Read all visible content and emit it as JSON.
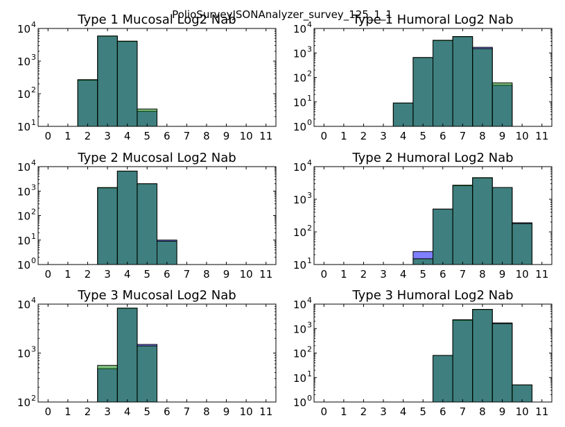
{
  "figure": {
    "suptitle": "PolioSurveyJSONAnalyzer_survey_125_1_1"
  },
  "chart_data": [
    {
      "type": "bar",
      "title": "Type 1 Mucosal Log2 Nab",
      "x_ticks": [
        "0",
        "1",
        "2",
        "3",
        "4",
        "5",
        "6",
        "7",
        "8",
        "9",
        "10",
        "11"
      ],
      "xlim": [
        -0.5,
        11.5
      ],
      "yscale": "log",
      "ylim": [
        10,
        10000
      ],
      "y_ticks": [
        {
          "base": "10",
          "exp": "1"
        },
        {
          "base": "10",
          "exp": "2"
        },
        {
          "base": "10",
          "exp": "3"
        },
        {
          "base": "10",
          "exp": "4"
        }
      ],
      "grid": false,
      "series": [
        {
          "color": "#0000ff",
          "values": [
            0,
            0,
            260,
            5800,
            4000,
            29,
            0,
            0,
            0,
            0,
            0,
            0
          ]
        },
        {
          "color": "#008000",
          "values": [
            0,
            0,
            270,
            5900,
            4100,
            34,
            0,
            0,
            0,
            0,
            0,
            0
          ]
        }
      ]
    },
    {
      "type": "bar",
      "title": "Type 1 Humoral Log2 Nab",
      "x_ticks": [
        "0",
        "1",
        "2",
        "3",
        "4",
        "5",
        "6",
        "7",
        "8",
        "9",
        "10",
        "11"
      ],
      "xlim": [
        -0.5,
        11.5
      ],
      "yscale": "log",
      "ylim": [
        1,
        10000
      ],
      "y_ticks": [
        {
          "base": "10",
          "exp": "0"
        },
        {
          "base": "10",
          "exp": "1"
        },
        {
          "base": "10",
          "exp": "2"
        },
        {
          "base": "10",
          "exp": "3"
        },
        {
          "base": "10",
          "exp": "4"
        }
      ],
      "grid": false,
      "series": [
        {
          "color": "#0000ff",
          "values": [
            0,
            0,
            0,
            0,
            9,
            650,
            3200,
            4600,
            1700,
            48,
            0,
            0
          ]
        },
        {
          "color": "#008000",
          "values": [
            0,
            0,
            0,
            0,
            9,
            650,
            3300,
            4700,
            1500,
            60,
            0,
            0
          ]
        }
      ]
    },
    {
      "type": "bar",
      "title": "Type 2 Mucosal Log2 Nab",
      "x_ticks": [
        "0",
        "1",
        "2",
        "3",
        "4",
        "5",
        "6",
        "7",
        "8",
        "9",
        "10",
        "11"
      ],
      "xlim": [
        -0.5,
        11.5
      ],
      "yscale": "log",
      "ylim": [
        1,
        10000
      ],
      "y_ticks": [
        {
          "base": "10",
          "exp": "0"
        },
        {
          "base": "10",
          "exp": "1"
        },
        {
          "base": "10",
          "exp": "2"
        },
        {
          "base": "10",
          "exp": "3"
        },
        {
          "base": "10",
          "exp": "4"
        }
      ],
      "grid": false,
      "series": [
        {
          "color": "#0000ff",
          "values": [
            0,
            0,
            0,
            1350,
            6500,
            2000,
            10,
            0,
            0,
            0,
            0,
            0
          ]
        },
        {
          "color": "#008000",
          "values": [
            0,
            0,
            0,
            1400,
            6600,
            2000,
            9,
            0,
            0,
            0,
            0,
            0
          ]
        }
      ]
    },
    {
      "type": "bar",
      "title": "Type 2 Humoral Log2 Nab",
      "x_ticks": [
        "0",
        "1",
        "2",
        "3",
        "4",
        "5",
        "6",
        "7",
        "8",
        "9",
        "10",
        "11"
      ],
      "xlim": [
        -0.5,
        11.5
      ],
      "yscale": "log",
      "ylim": [
        10,
        10000
      ],
      "y_ticks": [
        {
          "base": "10",
          "exp": "1"
        },
        {
          "base": "10",
          "exp": "2"
        },
        {
          "base": "10",
          "exp": "3"
        },
        {
          "base": "10",
          "exp": "4"
        }
      ],
      "grid": false,
      "series": [
        {
          "color": "#0000ff",
          "values": [
            0,
            0,
            0,
            0,
            0,
            25,
            500,
            2600,
            4500,
            2300,
            190,
            0
          ]
        },
        {
          "color": "#008000",
          "values": [
            0,
            0,
            0,
            0,
            0,
            15,
            500,
            2700,
            4600,
            2300,
            180,
            0
          ]
        }
      ]
    },
    {
      "type": "bar",
      "title": "Type 3 Mucosal Log2 Nab",
      "x_ticks": [
        "0",
        "1",
        "2",
        "3",
        "4",
        "5",
        "6",
        "7",
        "8",
        "9",
        "10",
        "11"
      ],
      "xlim": [
        -0.5,
        11.5
      ],
      "yscale": "log",
      "ylim": [
        100,
        10000
      ],
      "y_ticks": [
        {
          "base": "10",
          "exp": "2"
        },
        {
          "base": "10",
          "exp": "3"
        },
        {
          "base": "10",
          "exp": "4"
        }
      ],
      "grid": false,
      "series": [
        {
          "color": "#0000ff",
          "values": [
            0,
            0,
            0,
            480,
            8200,
            1500,
            0,
            0,
            0,
            0,
            0,
            0
          ]
        },
        {
          "color": "#008000",
          "values": [
            0,
            0,
            0,
            560,
            8300,
            1400,
            0,
            0,
            0,
            0,
            0,
            0
          ]
        }
      ]
    },
    {
      "type": "bar",
      "title": "Type 3 Humoral Log2 Nab",
      "x_ticks": [
        "0",
        "1",
        "2",
        "3",
        "4",
        "5",
        "6",
        "7",
        "8",
        "9",
        "10",
        "11"
      ],
      "xlim": [
        -0.5,
        11.5
      ],
      "yscale": "log",
      "ylim": [
        1,
        10000
      ],
      "y_ticks": [
        {
          "base": "10",
          "exp": "0"
        },
        {
          "base": "10",
          "exp": "1"
        },
        {
          "base": "10",
          "exp": "2"
        },
        {
          "base": "10",
          "exp": "3"
        },
        {
          "base": "10",
          "exp": "4"
        }
      ],
      "grid": false,
      "series": [
        {
          "color": "#0000ff",
          "values": [
            0,
            0,
            0,
            0,
            0,
            0,
            80,
            2200,
            6000,
            1700,
            5,
            0
          ]
        },
        {
          "color": "#008000",
          "values": [
            0,
            0,
            0,
            0,
            0,
            0,
            80,
            2300,
            6100,
            1600,
            5,
            0
          ]
        }
      ]
    }
  ]
}
